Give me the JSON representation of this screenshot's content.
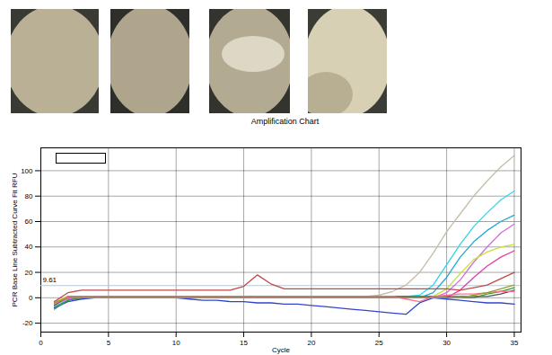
{
  "chart_data": {
    "type": "line",
    "title": "Amplification Chart",
    "x_label": "Cycle",
    "y_label": "PCR Base Line Subtracted Curve Fit RFU",
    "xlim": [
      0,
      35.5
    ],
    "xticks": [
      0,
      5,
      10,
      15,
      20,
      25,
      30,
      35
    ],
    "ylim": [
      -27,
      118
    ],
    "yticks": [
      -20,
      0,
      20,
      40,
      60,
      80,
      100
    ],
    "grid": true,
    "threshold_line": 9.61,
    "x": [
      1,
      2,
      3,
      4,
      5,
      6,
      7,
      8,
      9,
      10,
      11,
      12,
      13,
      14,
      15,
      16,
      17,
      18,
      19,
      20,
      21,
      22,
      23,
      24,
      25,
      26,
      27,
      28,
      29,
      30,
      31,
      32,
      33,
      34,
      35
    ],
    "series": [
      {
        "color": "#c4bca8",
        "values": [
          -6,
          -1,
          0,
          1,
          1,
          1,
          1,
          1,
          1,
          1,
          1,
          1,
          1,
          1,
          1,
          1,
          1,
          1,
          1,
          1,
          1,
          1,
          1,
          1,
          2,
          5,
          10,
          20,
          35,
          52,
          66,
          80,
          92,
          103,
          112
        ]
      },
      {
        "color": "#33d6e6",
        "values": [
          -4,
          0,
          1,
          1,
          1,
          1,
          1,
          1,
          1,
          1,
          1,
          1,
          1,
          1,
          1,
          1,
          1,
          1,
          1,
          1,
          1,
          1,
          1,
          1,
          1,
          1,
          1,
          2,
          10,
          26,
          42,
          56,
          67,
          77,
          84
        ]
      },
      {
        "color": "#20a8d0",
        "values": [
          -7,
          -2,
          0,
          0,
          0,
          0,
          0,
          0,
          0,
          0,
          0,
          0,
          0,
          0,
          0,
          0,
          0,
          0,
          0,
          0,
          0,
          0,
          0,
          0,
          0,
          0,
          0,
          0,
          4,
          16,
          32,
          44,
          53,
          60,
          65
        ]
      },
      {
        "color": "#d070d8",
        "values": [
          -5,
          -1,
          0,
          0,
          0,
          0,
          0,
          0,
          0,
          0,
          0,
          0,
          0,
          0,
          0,
          0,
          0,
          0,
          0,
          0,
          0,
          0,
          0,
          0,
          0,
          0,
          0,
          0,
          0,
          4,
          14,
          28,
          40,
          51,
          58
        ]
      },
      {
        "color": "#c8e040",
        "values": [
          -3,
          1,
          1,
          1,
          1,
          1,
          1,
          1,
          1,
          1,
          1,
          1,
          1,
          1,
          1,
          1,
          1,
          1,
          1,
          1,
          1,
          1,
          1,
          1,
          1,
          1,
          1,
          1,
          1,
          7,
          19,
          30,
          36,
          40,
          42
        ]
      },
      {
        "color": "#e040a0",
        "values": [
          -4,
          0,
          0,
          0,
          0,
          0,
          0,
          0,
          0,
          0,
          0,
          0,
          0,
          0,
          0,
          0,
          0,
          0,
          0,
          0,
          0,
          0,
          0,
          0,
          0,
          0,
          0,
          0,
          0,
          0,
          6,
          16,
          25,
          32,
          37
        ]
      },
      {
        "color": "#c04848",
        "values": [
          -3,
          4,
          6,
          6,
          6,
          6,
          6,
          6,
          6,
          6,
          6,
          6,
          6,
          6,
          9,
          18,
          11,
          7,
          7,
          7,
          7,
          7,
          7,
          7,
          7,
          7,
          7,
          7,
          7,
          7,
          6,
          8,
          10,
          15,
          20
        ]
      },
      {
        "color": "#3344cc",
        "values": [
          -8,
          -3,
          -1,
          0,
          0,
          0,
          0,
          0,
          0,
          0,
          -1,
          -2,
          -2,
          -3,
          -3,
          -4,
          -4,
          -5,
          -5,
          -6,
          -7,
          -8,
          -9,
          -10,
          -11,
          -12,
          -13,
          -4,
          0,
          -1,
          -2,
          -3,
          -4,
          -4,
          -5
        ]
      },
      {
        "color": "#3a9a3a",
        "values": [
          -9,
          -2,
          0,
          0,
          0,
          0,
          0,
          0,
          0,
          0,
          0,
          0,
          0,
          0,
          0,
          0,
          0,
          0,
          0,
          0,
          0,
          0,
          0,
          0,
          0,
          0,
          0,
          0,
          0,
          0,
          0,
          0,
          3,
          5,
          8
        ]
      },
      {
        "color": "#505050",
        "values": [
          -6,
          1,
          1,
          1,
          1,
          1,
          1,
          1,
          1,
          1,
          1,
          1,
          1,
          1,
          1,
          1,
          1,
          1,
          1,
          1,
          1,
          1,
          1,
          1,
          1,
          1,
          1,
          1,
          1,
          1,
          1,
          1,
          1,
          3,
          6
        ]
      },
      {
        "color": "#ff7090",
        "values": [
          -5,
          1,
          1,
          1,
          1,
          1,
          1,
          1,
          1,
          1,
          1,
          1,
          1,
          1,
          1,
          1,
          1,
          1,
          1,
          1,
          1,
          1,
          1,
          1,
          1,
          1,
          -1,
          -3,
          1,
          2,
          3,
          3,
          4,
          5,
          5
        ]
      },
      {
        "color": "#90a030",
        "values": [
          -4,
          0,
          0,
          0,
          0,
          0,
          0,
          0,
          0,
          0,
          0,
          0,
          0,
          0,
          0,
          0,
          0,
          0,
          0,
          0,
          0,
          0,
          0,
          0,
          0,
          0,
          0,
          0,
          0,
          0,
          0,
          2,
          4,
          7,
          10
        ]
      }
    ]
  }
}
